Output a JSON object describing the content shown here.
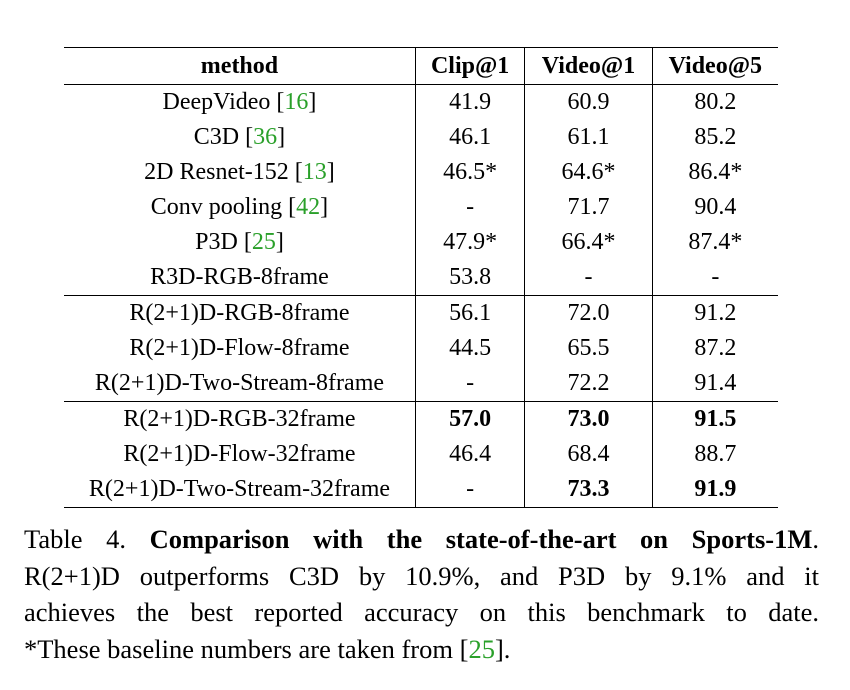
{
  "table": {
    "headers": [
      "method",
      "Clip@1",
      "Video@1",
      "Video@5"
    ],
    "rows": [
      {
        "method": "DeepVideo ",
        "cite": "16",
        "cite_close": "]",
        "cite_open": "[",
        "clip1": "41.9",
        "video1": "60.9",
        "video5": "80.2"
      },
      {
        "method": "C3D ",
        "cite": "36",
        "cite_open": "[",
        "cite_close": "]",
        "clip1": "46.1",
        "video1": "61.1",
        "video5": "85.2"
      },
      {
        "method": "2D Resnet-152 ",
        "cite": "13",
        "cite_open": "[",
        "cite_close": "]",
        "clip1": "46.5*",
        "video1": "64.6*",
        "video5": "86.4*"
      },
      {
        "method": "Conv pooling ",
        "cite": "42",
        "cite_open": "[",
        "cite_close": "]",
        "clip1": "-",
        "video1": "71.7",
        "video5": "90.4"
      },
      {
        "method": "P3D ",
        "cite": "25",
        "cite_open": "[",
        "cite_close": "]",
        "clip1": "47.9*",
        "video1": "66.4*",
        "video5": "87.4*"
      },
      {
        "method": "R3D-RGB-8frame",
        "clip1": "53.8",
        "video1": "-",
        "video5": "-"
      },
      {
        "method": "R(2+1)D-RGB-8frame",
        "clip1": "56.1",
        "video1": "72.0",
        "video5": "91.2"
      },
      {
        "method": "R(2+1)D-Flow-8frame",
        "clip1": "44.5",
        "video1": "65.5",
        "video5": "87.2"
      },
      {
        "method": "R(2+1)D-Two-Stream-8frame",
        "clip1": "-",
        "video1": "72.2",
        "video5": "91.4"
      },
      {
        "method": "R(2+1)D-RGB-32frame",
        "clip1": "57.0",
        "video1": "73.0",
        "video5": "91.5"
      },
      {
        "method": "R(2+1)D-Flow-32frame",
        "clip1": "46.4",
        "video1": "68.4",
        "video5": "88.7"
      },
      {
        "method": "R(2+1)D-Two-Stream-32frame",
        "clip1": "-",
        "video1": "73.3",
        "video5": "91.9"
      }
    ]
  },
  "caption": {
    "label": "Table 4. ",
    "title": "Comparison with the state-of-the-art on Sports-1M",
    "line1_end": ".",
    "line2": "R(2+1)D outperforms C3D by 10.9%, and P3D by 9.1% and it",
    "line3": "achieves the best reported accuracy on this benchmark to date.",
    "line4_pre": "*These baseline numbers are taken from [",
    "line4_cite": "25",
    "line4_post": "]."
  },
  "colors": {
    "citation": "#2aa02a"
  }
}
